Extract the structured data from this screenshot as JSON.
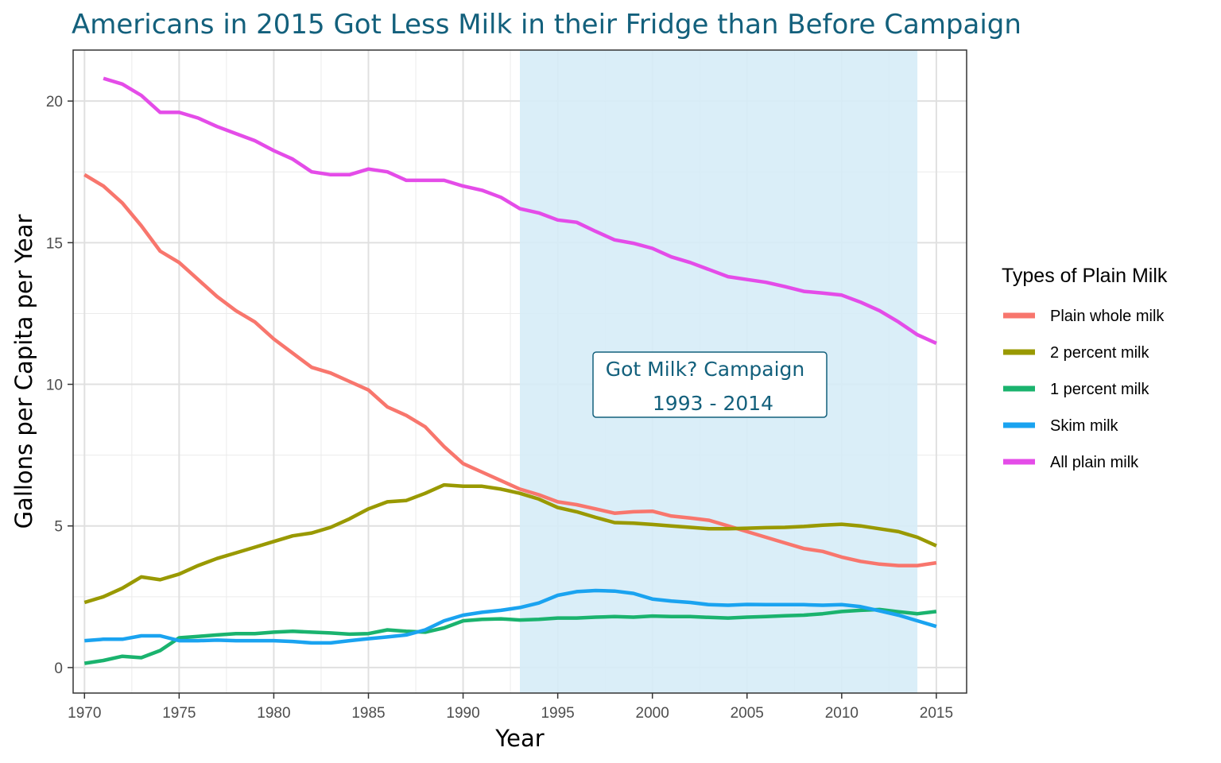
{
  "chart_data": {
    "type": "line",
    "title": "Americans in 2015 Got Less Milk in their Fridge than Before Campaign",
    "xlabel": "Year",
    "ylabel": "Gallons per Capita per Year",
    "xlim": [
      1969.4,
      2016.6
    ],
    "ylim": [
      -0.9,
      21.8
    ],
    "x_ticks": [
      1970,
      1975,
      1980,
      1985,
      1990,
      1995,
      2000,
      2005,
      2010,
      2015
    ],
    "y_ticks": [
      0,
      5,
      10,
      15,
      20
    ],
    "grid": true,
    "legend": {
      "title": "Types of Plain Milk",
      "position": "right"
    },
    "highlight": {
      "x_start": 1993,
      "x_end": 2014,
      "color": "#d6ecf7",
      "label_lines": [
        "Got Milk? Campaign",
        "1993 - 2014"
      ]
    },
    "series": [
      {
        "name": "Plain whole milk",
        "color": "#f8766d",
        "x_start": 1970,
        "values": [
          17.4,
          17.0,
          16.4,
          15.6,
          14.7,
          14.3,
          13.7,
          13.1,
          12.6,
          12.2,
          11.6,
          11.1,
          10.6,
          10.4,
          10.1,
          9.8,
          9.2,
          8.9,
          8.5,
          7.8,
          7.2,
          6.9,
          6.6,
          6.3,
          6.1,
          5.85,
          5.75,
          5.6,
          5.45,
          5.5,
          5.52,
          5.35,
          5.28,
          5.2,
          5.0,
          4.8,
          4.6,
          4.4,
          4.2,
          4.1,
          3.9,
          3.75,
          3.65,
          3.6,
          3.6,
          3.7
        ]
      },
      {
        "name": "2 percent milk",
        "color": "#999900",
        "x_start": 1970,
        "values": [
          2.3,
          2.5,
          2.8,
          3.2,
          3.1,
          3.3,
          3.6,
          3.85,
          4.05,
          4.25,
          4.45,
          4.65,
          4.75,
          4.95,
          5.25,
          5.6,
          5.85,
          5.9,
          6.15,
          6.45,
          6.4,
          6.4,
          6.3,
          6.15,
          5.95,
          5.65,
          5.5,
          5.3,
          5.12,
          5.1,
          5.05,
          5.0,
          4.95,
          4.9,
          4.9,
          4.92,
          4.94,
          4.95,
          4.98,
          5.03,
          5.06,
          5.0,
          4.9,
          4.8,
          4.6,
          4.3
        ]
      },
      {
        "name": "1 percent milk",
        "color": "#1ab36e",
        "x_start": 1970,
        "values": [
          0.15,
          0.25,
          0.4,
          0.35,
          0.6,
          1.05,
          1.1,
          1.15,
          1.2,
          1.2,
          1.25,
          1.28,
          1.25,
          1.22,
          1.18,
          1.2,
          1.33,
          1.28,
          1.25,
          1.4,
          1.65,
          1.7,
          1.72,
          1.68,
          1.7,
          1.75,
          1.75,
          1.78,
          1.8,
          1.78,
          1.82,
          1.8,
          1.8,
          1.77,
          1.75,
          1.78,
          1.8,
          1.83,
          1.85,
          1.9,
          1.98,
          2.02,
          2.05,
          1.97,
          1.9,
          1.98
        ]
      },
      {
        "name": "Skim milk",
        "color": "#1aa3f0",
        "x_start": 1970,
        "values": [
          0.95,
          1.0,
          1.0,
          1.12,
          1.12,
          0.95,
          0.95,
          0.97,
          0.95,
          0.95,
          0.95,
          0.92,
          0.87,
          0.87,
          0.95,
          1.02,
          1.08,
          1.15,
          1.33,
          1.65,
          1.85,
          1.95,
          2.02,
          2.12,
          2.28,
          2.55,
          2.68,
          2.72,
          2.7,
          2.62,
          2.42,
          2.35,
          2.3,
          2.22,
          2.2,
          2.23,
          2.22,
          2.22,
          2.22,
          2.2,
          2.22,
          2.15,
          2.0,
          1.85,
          1.65,
          1.45
        ]
      },
      {
        "name": "All plain milk",
        "color": "#e44ce8",
        "x_start": 1971,
        "values": [
          20.8,
          20.6,
          20.2,
          19.6,
          19.6,
          19.4,
          19.1,
          18.85,
          18.6,
          18.25,
          17.95,
          17.5,
          17.4,
          17.4,
          17.6,
          17.5,
          17.2,
          17.2,
          17.2,
          17.0,
          16.85,
          16.6,
          16.2,
          16.05,
          15.8,
          15.72,
          15.4,
          15.1,
          14.98,
          14.8,
          14.5,
          14.3,
          14.05,
          13.8,
          13.7,
          13.6,
          13.45,
          13.28,
          13.22,
          13.15,
          12.9,
          12.6,
          12.2,
          11.75,
          11.45
        ]
      }
    ]
  }
}
